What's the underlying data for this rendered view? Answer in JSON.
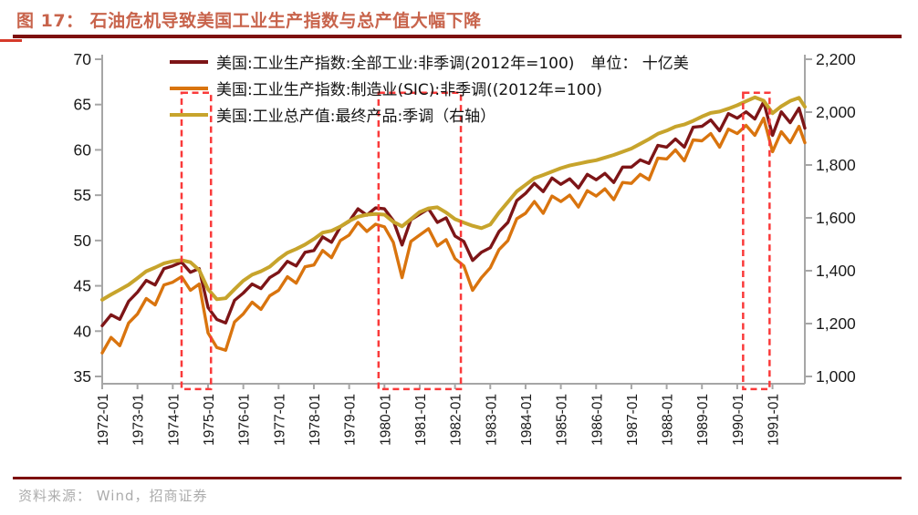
{
  "header": {
    "title": "图 17： 石油危机导致美国工业生产指数与总产值大幅下降"
  },
  "footer": {
    "source_label": "资料来源： Wind，招商证券"
  },
  "chart_data": {
    "type": "line",
    "title": "石油危机导致美国工业生产指数与总产值大幅下降",
    "x_start": "1972-01",
    "x_end": "1991-12",
    "x_tick_labels": [
      "1972-01",
      "1973-01",
      "1974-01",
      "1975-01",
      "1976-01",
      "1977-01",
      "1978-01",
      "1979-01",
      "1980-01",
      "1981-01",
      "1982-01",
      "1983-01",
      "1984-01",
      "1985-01",
      "1986-01",
      "1987-01",
      "1988-01",
      "1989-01",
      "1990-01",
      "1991-01"
    ],
    "left_axis": {
      "min": 35,
      "max": 70,
      "ticks": [
        70,
        65,
        60,
        55,
        50,
        45,
        40,
        35
      ]
    },
    "right_axis": {
      "min": 1000,
      "max": 2200,
      "ticks": [
        2200,
        2000,
        1800,
        1600,
        1400,
        1200,
        1000
      ],
      "tick_labels": [
        "2,200",
        "2,000",
        "1,800",
        "1,600",
        "1,400",
        "1,200",
        "1,000"
      ]
    },
    "legend": {
      "items": [
        {
          "label": "美国:工业生产指数:全部工业:非季调(2012年=100)",
          "color": "#7D1517"
        },
        {
          "label": "美国:工业生产指数:制造业(SIC):非季调((2012年=100)",
          "color": "#D9740E"
        },
        {
          "label": "美国:工业总产值:最终产品:季调（右轴）",
          "color": "#C7A42C"
        }
      ],
      "unit_label": "单位： 十亿美"
    },
    "x_months": [
      0,
      3,
      6,
      9,
      12,
      15,
      18,
      21,
      24,
      27,
      30,
      33,
      36,
      39,
      42,
      45,
      48,
      51,
      54,
      57,
      60,
      63,
      66,
      69,
      72,
      75,
      78,
      81,
      84,
      87,
      90,
      93,
      96,
      99,
      102,
      105,
      108,
      111,
      114,
      117,
      120,
      123,
      126,
      129,
      132,
      135,
      138,
      141,
      144,
      147,
      150,
      153,
      156,
      159,
      162,
      165,
      168,
      171,
      174,
      177,
      180,
      183,
      186,
      189,
      192,
      195,
      198,
      201,
      204,
      207,
      210,
      213,
      216,
      219,
      222,
      225,
      228,
      231,
      234,
      237,
      239
    ],
    "series": [
      {
        "name": "美国:工业生产指数:全部工业:非季调(2012年=100)",
        "axis": "left",
        "color": "#7D1517",
        "values": [
          40.6,
          41.8,
          41.3,
          43.3,
          44.3,
          45.6,
          45.1,
          46.9,
          47.2,
          47.6,
          46.5,
          46.9,
          42.6,
          41.3,
          40.9,
          43.4,
          44.2,
          45.2,
          44.7,
          45.9,
          46.5,
          47.7,
          47.2,
          48.7,
          48.9,
          50.4,
          49.8,
          51.5,
          52.1,
          53.5,
          52.8,
          53.6,
          53.5,
          52.2,
          49.5,
          52.3,
          52.9,
          53.5,
          52.0,
          52.5,
          50.5,
          49.9,
          47.8,
          48.7,
          49.2,
          51.0,
          52.0,
          54.4,
          55.2,
          56.3,
          55.4,
          56.9,
          56.2,
          56.8,
          55.8,
          57.3,
          56.7,
          57.4,
          56.4,
          58.1,
          58.1,
          58.9,
          58.5,
          60.5,
          60.3,
          61.2,
          60.3,
          62.5,
          62.6,
          63.3,
          62.1,
          64.0,
          63.5,
          64.2,
          63.4,
          65.3,
          61.6,
          64.2,
          63.0,
          64.6,
          62.4
        ]
      },
      {
        "name": "美国:工业生产指数:制造业(SIC):非季调((2012年=100)",
        "axis": "left",
        "color": "#D9740E",
        "values": [
          37.6,
          39.3,
          38.4,
          40.9,
          41.9,
          43.6,
          42.9,
          45.1,
          45.4,
          46.0,
          44.5,
          45.2,
          39.8,
          38.2,
          37.9,
          41.0,
          41.9,
          43.2,
          42.4,
          43.9,
          44.5,
          46.0,
          45.3,
          47.1,
          47.3,
          48.9,
          48.1,
          50.0,
          50.6,
          52.0,
          51.0,
          51.8,
          51.5,
          49.8,
          45.9,
          49.9,
          50.6,
          51.3,
          49.4,
          50.1,
          48.0,
          47.2,
          44.5,
          45.9,
          47.0,
          49.0,
          50.0,
          52.4,
          53.0,
          54.3,
          53.0,
          54.9,
          54.3,
          55.0,
          53.7,
          55.5,
          54.9,
          55.7,
          54.5,
          56.4,
          56.3,
          57.3,
          56.7,
          59.1,
          59.0,
          60.0,
          58.8,
          61.1,
          61.0,
          61.8,
          60.3,
          62.3,
          61.8,
          62.7,
          61.6,
          63.5,
          59.8,
          62.0,
          60.8,
          62.6,
          60.8
        ]
      },
      {
        "name": "美国:工业总产值:最终产品:季调（右轴）",
        "axis": "right",
        "color": "#C7A42C",
        "values": [
          1290,
          1310,
          1328,
          1347,
          1372,
          1398,
          1412,
          1428,
          1436,
          1440,
          1432,
          1402,
          1330,
          1292,
          1296,
          1330,
          1362,
          1385,
          1398,
          1415,
          1444,
          1468,
          1482,
          1499,
          1520,
          1544,
          1551,
          1567,
          1588,
          1604,
          1612,
          1615,
          1612,
          1585,
          1568,
          1595,
          1622,
          1636,
          1640,
          1620,
          1595,
          1582,
          1570,
          1561,
          1575,
          1620,
          1660,
          1700,
          1725,
          1750,
          1762,
          1775,
          1788,
          1798,
          1805,
          1812,
          1818,
          1828,
          1838,
          1850,
          1862,
          1880,
          1898,
          1918,
          1930,
          1945,
          1953,
          1967,
          1983,
          1997,
          2002,
          2013,
          2026,
          2041,
          2056,
          2043,
          1996,
          2022,
          2042,
          2054,
          2020
        ]
      }
    ],
    "crisis_boxes": [
      {
        "from": "1974-04",
        "to": "1975-02"
      },
      {
        "from": "1979-11",
        "to": "1982-03"
      },
      {
        "from": "1990-03",
        "to": "1990-12"
      }
    ],
    "box_top_value": 66.3,
    "box_bottom_value": 33.6,
    "colors": {
      "crisis_box": "#FA3A3A",
      "axis": "#A6A6A6",
      "tick_text": "#1A1A1A",
      "title": "#C8644C",
      "rule": "#7D100D",
      "source_text": "#ACACAC"
    },
    "grid": false,
    "legend_position": "top-inside"
  }
}
